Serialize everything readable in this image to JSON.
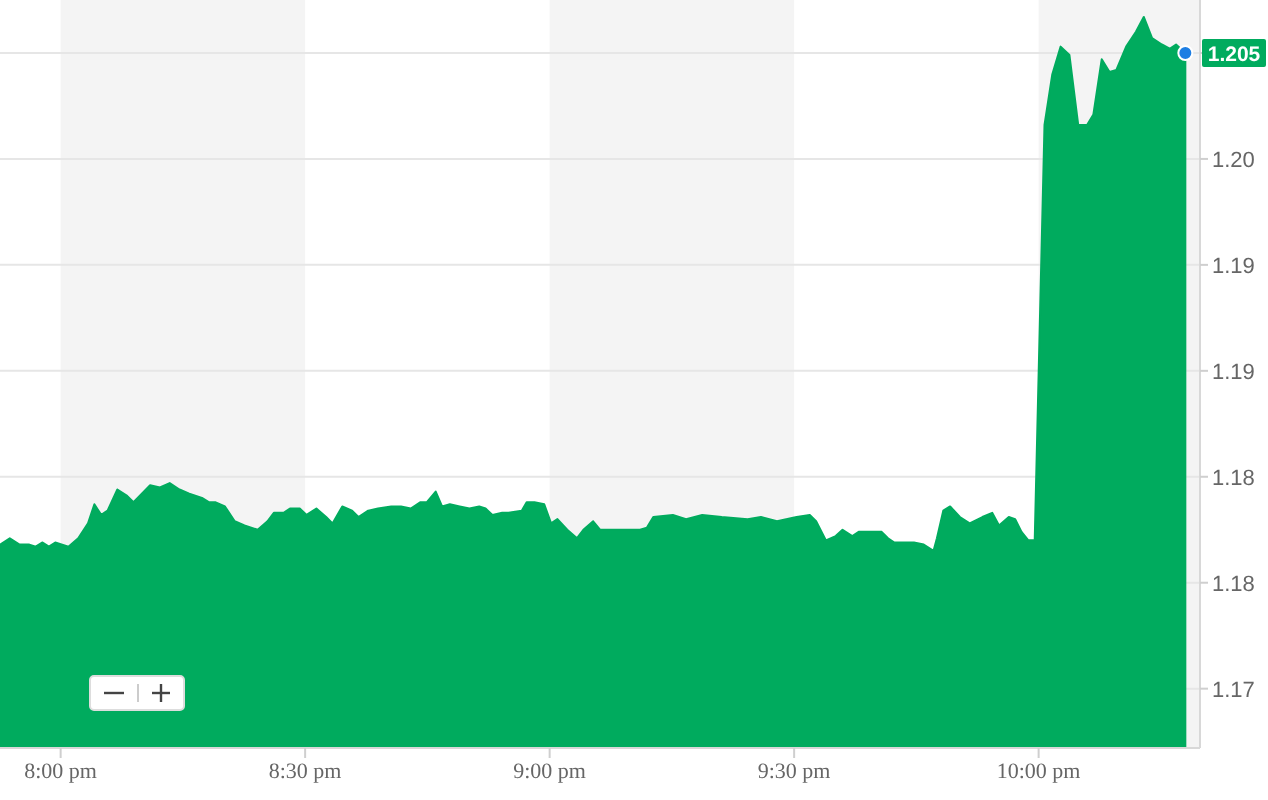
{
  "chart_data": {
    "type": "area",
    "x": [
      19.876,
      19.896,
      19.916,
      19.936,
      19.949,
      19.963,
      19.976,
      19.989,
      20.016,
      20.036,
      20.056,
      20.069,
      20.083,
      20.096,
      20.116,
      20.136,
      20.149,
      20.183,
      20.203,
      20.223,
      20.243,
      20.263,
      20.289,
      20.303,
      20.316,
      20.336,
      20.356,
      20.376,
      20.403,
      20.423,
      20.436,
      20.456,
      20.469,
      20.489,
      20.503,
      20.523,
      20.543,
      20.556,
      20.576,
      20.596,
      20.609,
      20.629,
      20.649,
      20.676,
      20.696,
      20.716,
      20.736,
      20.749,
      20.767,
      20.78,
      20.796,
      20.816,
      20.836,
      20.856,
      20.869,
      20.883,
      20.903,
      20.916,
      20.943,
      20.953,
      20.969,
      20.989,
      21.003,
      21.016,
      21.036,
      21.056,
      21.069,
      21.089,
      21.103,
      21.123,
      21.185,
      21.199,
      21.212,
      21.252,
      21.279,
      21.312,
      21.352,
      21.405,
      21.432,
      21.465,
      21.505,
      21.532,
      21.545,
      21.565,
      21.585,
      21.599,
      21.619,
      21.632,
      21.679,
      21.692,
      21.705,
      21.745,
      21.765,
      21.785,
      21.792,
      21.805,
      21.819,
      21.839,
      21.859,
      21.885,
      21.905,
      21.919,
      21.939,
      21.952,
      21.965,
      21.979,
      21.992,
      22.012,
      22.028,
      22.045,
      22.063,
      22.081,
      22.099,
      22.112,
      22.129,
      22.145,
      22.159,
      22.179,
      22.199,
      22.215,
      22.232,
      22.252,
      22.268,
      22.281,
      22.3
    ],
    "series": [
      {
        "color": "#00ab5e",
        "values": [
          1.1818,
          1.1821,
          1.1818,
          1.1818,
          1.1817,
          1.1819,
          1.1817,
          1.1819,
          1.1817,
          1.1821,
          1.1828,
          1.1837,
          1.1832,
          1.1834,
          1.1844,
          1.1841,
          1.1838,
          1.1846,
          1.1845,
          1.1847,
          1.1844,
          1.1842,
          1.184,
          1.1838,
          1.1838,
          1.1836,
          1.1829,
          1.1827,
          1.1825,
          1.1829,
          1.1833,
          1.1833,
          1.1835,
          1.1835,
          1.1832,
          1.1835,
          1.1831,
          1.1828,
          1.1836,
          1.1834,
          1.1831,
          1.1834,
          1.1835,
          1.1836,
          1.1836,
          1.1835,
          1.1838,
          1.1838,
          1.1843,
          1.1836,
          1.1837,
          1.1836,
          1.1835,
          1.1836,
          1.1835,
          1.1832,
          1.1833,
          1.1833,
          1.1834,
          1.1838,
          1.1838,
          1.1837,
          1.1828,
          1.183,
          1.1825,
          1.1821,
          1.1825,
          1.1829,
          1.1825,
          1.1825,
          1.1825,
          1.1826,
          1.1831,
          1.1832,
          1.183,
          1.1832,
          1.1831,
          1.183,
          1.1831,
          1.1829,
          1.1831,
          1.1832,
          1.1829,
          1.182,
          1.1822,
          1.1825,
          1.1822,
          1.1824,
          1.1824,
          1.1821,
          1.1819,
          1.1819,
          1.1818,
          1.1815,
          1.1821,
          1.1834,
          1.1836,
          1.1831,
          1.1828,
          1.1831,
          1.1833,
          1.1827,
          1.1831,
          1.183,
          1.1824,
          1.182,
          1.182,
          1.2016,
          1.204,
          1.2053,
          1.2049,
          1.2016,
          1.2016,
          1.2021,
          1.2047,
          1.2041,
          1.2042,
          1.2053,
          1.206,
          1.2067,
          1.2057,
          1.2054,
          1.2052,
          1.2054,
          1.205
        ]
      }
    ],
    "xlim": [
      19.876,
      22.33
    ],
    "xticks": [
      {
        "value": 20,
        "label": "8:00 pm"
      },
      {
        "value": 20.5,
        "label": "8:30 pm"
      },
      {
        "value": 21,
        "label": "9:00 pm"
      },
      {
        "value": 21.5,
        "label": "9:30 pm"
      },
      {
        "value": 22,
        "label": "10:00 pm"
      }
    ],
    "ylim": [
      1.1722,
      1.2075
    ],
    "yticks": [
      {
        "value": 1.175,
        "label": "1.17"
      },
      1.18,
      {
        "value": 1.185,
        "label": "1.18"
      },
      1.19,
      {
        "value": 1.195,
        "label": "1.19"
      },
      {
        "value": 1.2,
        "label": "1.20"
      },
      {
        "value": 1.205,
        "label": null
      }
    ],
    "grid": "y",
    "bands": [
      {
        "axis": "x",
        "from": 20,
        "to": 20.5,
        "color": "#f4f4f4"
      },
      {
        "axis": "x",
        "from": 21,
        "to": 21.5,
        "color": "#f4f4f4"
      },
      {
        "axis": "x",
        "from": 22,
        "to": 22.33,
        "color": "#f4f4f4"
      }
    ],
    "annotations": [
      {
        "text": "1.205",
        "x": 22.3,
        "y": 1.205
      }
    ]
  }
}
